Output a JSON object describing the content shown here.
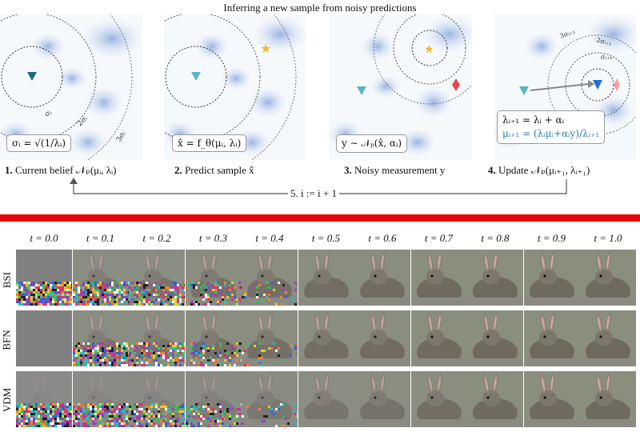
{
  "title": "Inferring a new sample from noisy predictions",
  "panels": [
    {
      "formula": "σᵢ = √(1/λᵢ)",
      "caption_num": "1.",
      "caption_text": " Current belief 𝒩ₚ(μᵢ, λᵢ)",
      "ring_labels": [
        "σᵢ",
        "2σᵢ",
        "3σᵢ"
      ]
    },
    {
      "formula": "x̂ = f_θ(μᵢ, λᵢ)",
      "caption_num": "2.",
      "caption_text": " Predict sample x̂"
    },
    {
      "formula": "y ∼ 𝒩ₚ(x̂, αᵢ)",
      "caption_num": "3.",
      "caption_text": " Noisy measurement y"
    },
    {
      "formula_line1": "λᵢ₊₁ = λᵢ + αᵢ",
      "formula_line2": "μᵢ₊₁ = (λᵢμᵢ+αᵢy)/λᵢ₊₁",
      "caption_num": "4.",
      "caption_text": " Update 𝒩ₚ(μᵢ₊₁, λᵢ₊₁)",
      "ring_labels": [
        "σᵢ₊₁",
        "2σᵢ₊₁",
        "3σᵢ₊₁"
      ]
    }
  ],
  "loop_label": "5. i := i + 1",
  "grid": {
    "time_labels": [
      "t = 0.0",
      "t = 0.1",
      "t = 0.2",
      "t = 0.3",
      "t = 0.4",
      "t = 0.5",
      "t = 0.6",
      "t = 0.7",
      "t = 0.8",
      "t = 0.9",
      "t = 1.0"
    ],
    "rows": [
      "BSI",
      "BFN",
      "VDM"
    ]
  },
  "colors": {
    "accent_blue": "#2a7fb8",
    "star": "#f2b632",
    "measurement": "#e8474f",
    "bar": "#e8000b"
  }
}
